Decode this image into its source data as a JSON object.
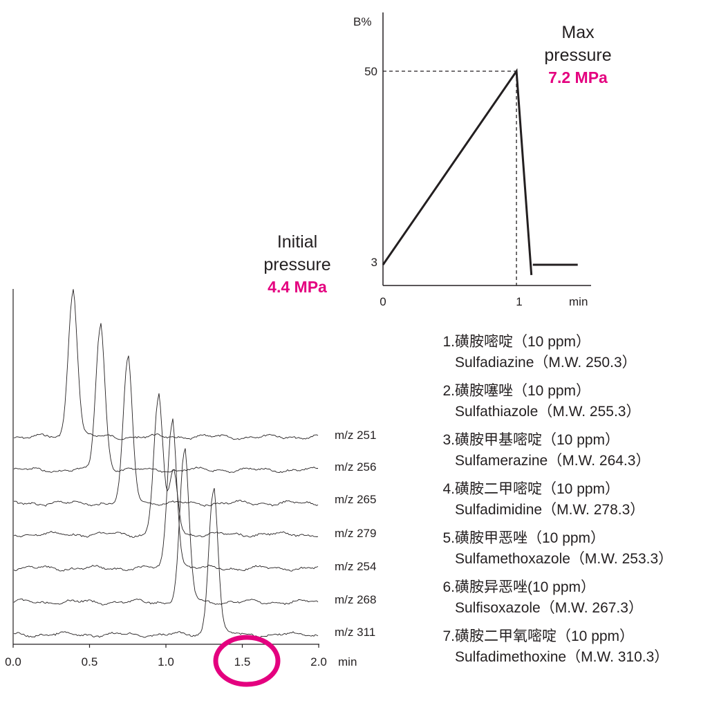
{
  "gradient_panel": {
    "initial_pressure": {
      "label_line1": "Initial",
      "label_line2": "pressure",
      "value": "4.4 MPa"
    },
    "max_pressure": {
      "label_line1": "Max",
      "label_line2": "pressure",
      "value": "7.2 MPa"
    },
    "highlight_color": "#e4007f"
  },
  "legend": [
    {
      "num": "1.",
      "cn": "磺胺嘧啶（10 ppm）",
      "en": "Sulfadiazine（M.W. 250.3）"
    },
    {
      "num": "2.",
      "cn": "磺胺噻唑（10 ppm）",
      "en": "Sulfathiazole（M.W. 255.3）"
    },
    {
      "num": "3.",
      "cn": "磺胺甲基嘧啶（10 ppm）",
      "en": "Sulfamerazine（M.W. 264.3）"
    },
    {
      "num": "4.",
      "cn": "磺胺二甲嘧啶（10 ppm）",
      "en": "Sulfadimidine（M.W. 278.3）"
    },
    {
      "num": "5.",
      "cn": "磺胺甲恶唑（10 ppm）",
      "en": "Sulfamethoxazole（M.W. 253.3）"
    },
    {
      "num": "6.",
      "cn": "磺胺异恶唑(10 ppm）",
      "en": "Sulfisoxazole（M.W. 267.3）"
    },
    {
      "num": "7.",
      "cn": "磺胺二甲氧嘧啶（10 ppm）",
      "en": "Sulfadimethoxine（M.W. 310.3）"
    }
  ],
  "chart_data": [
    {
      "type": "line",
      "ylabel": "B%",
      "xlabel": "min",
      "x_ticks": [
        "0",
        "1"
      ],
      "y_ticks": [
        "3",
        "50"
      ],
      "xlim": [
        0,
        1.5
      ],
      "ylim": [
        0,
        60
      ],
      "series": [
        {
          "x": [
            0,
            0.98,
            1.09
          ],
          "y": [
            3,
            50,
            0.5
          ]
        },
        {
          "x": [
            1.1,
            1.43
          ],
          "y": [
            3,
            3
          ]
        }
      ],
      "guides": {
        "x": 0.98,
        "y": 50
      }
    },
    {
      "type": "line",
      "xlabel": "min",
      "x_ticks": [
        "0.0",
        "0.5",
        "1.0",
        "1.5",
        "2.0"
      ],
      "xlim": [
        0,
        2.05
      ],
      "highlight_tick": "1.5",
      "series": [
        {
          "name": "m/z 251",
          "peak_rt": 0.39,
          "peak_height": 208
        },
        {
          "name": "m/z 256",
          "peak_rt": 0.57,
          "peak_height": 205
        },
        {
          "name": "m/z 265",
          "peak_rt": 0.75,
          "peak_height": 204
        },
        {
          "name": "m/z 279",
          "peak_rt": 0.95,
          "peak_height": 195,
          "secondary_peak": {
            "rt": 1.05,
            "height": 90
          }
        },
        {
          "name": "m/z 254",
          "peak_rt": 1.04,
          "peak_height": 211
        },
        {
          "name": "m/z 268",
          "peak_rt": 1.12,
          "peak_height": 213
        },
        {
          "name": "m/z 311",
          "peak_rt": 1.31,
          "peak_height": 209
        }
      ]
    }
  ]
}
